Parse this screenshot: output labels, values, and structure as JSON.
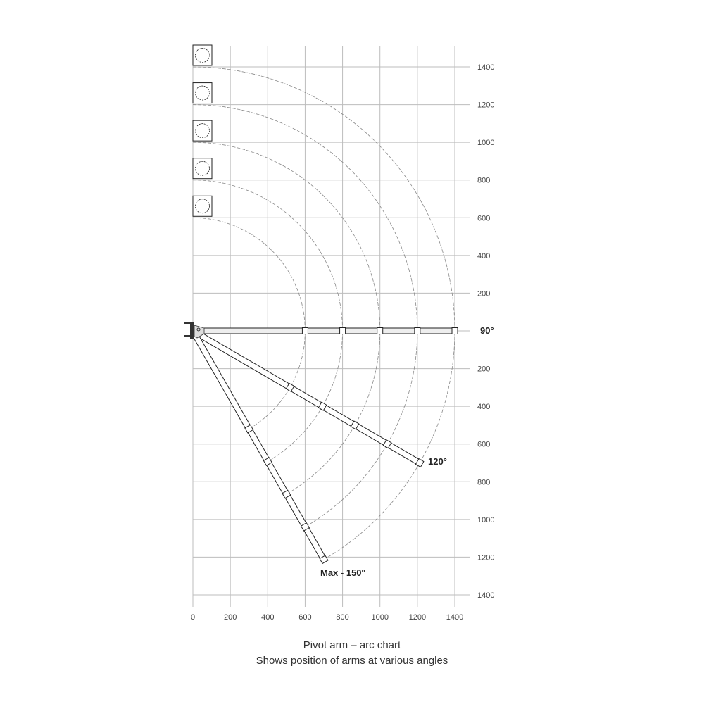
{
  "x_ticks": [
    "0",
    "200",
    "400",
    "600",
    "800",
    "1000",
    "1200",
    "1400"
  ],
  "y_ticks_up": [
    "200",
    "400",
    "600",
    "800",
    "1000",
    "1200",
    "1400"
  ],
  "y_ticks_down": [
    "200",
    "400",
    "600",
    "800",
    "1000",
    "1200",
    "1400"
  ],
  "arc_radii": [
    600,
    800,
    1000,
    1200,
    1400
  ],
  "arms": [
    {
      "angle": 90,
      "label": "90°"
    },
    {
      "angle": 120,
      "label": "120°"
    },
    {
      "angle": 150,
      "label": "Max - 150°"
    }
  ],
  "caption": {
    "title": "Pivot arm – arc chart",
    "subtitle": "Shows position of arms at various angles"
  },
  "colors": {
    "grid": "#bdbdbd",
    "line": "#222222",
    "arc": "#888888"
  }
}
